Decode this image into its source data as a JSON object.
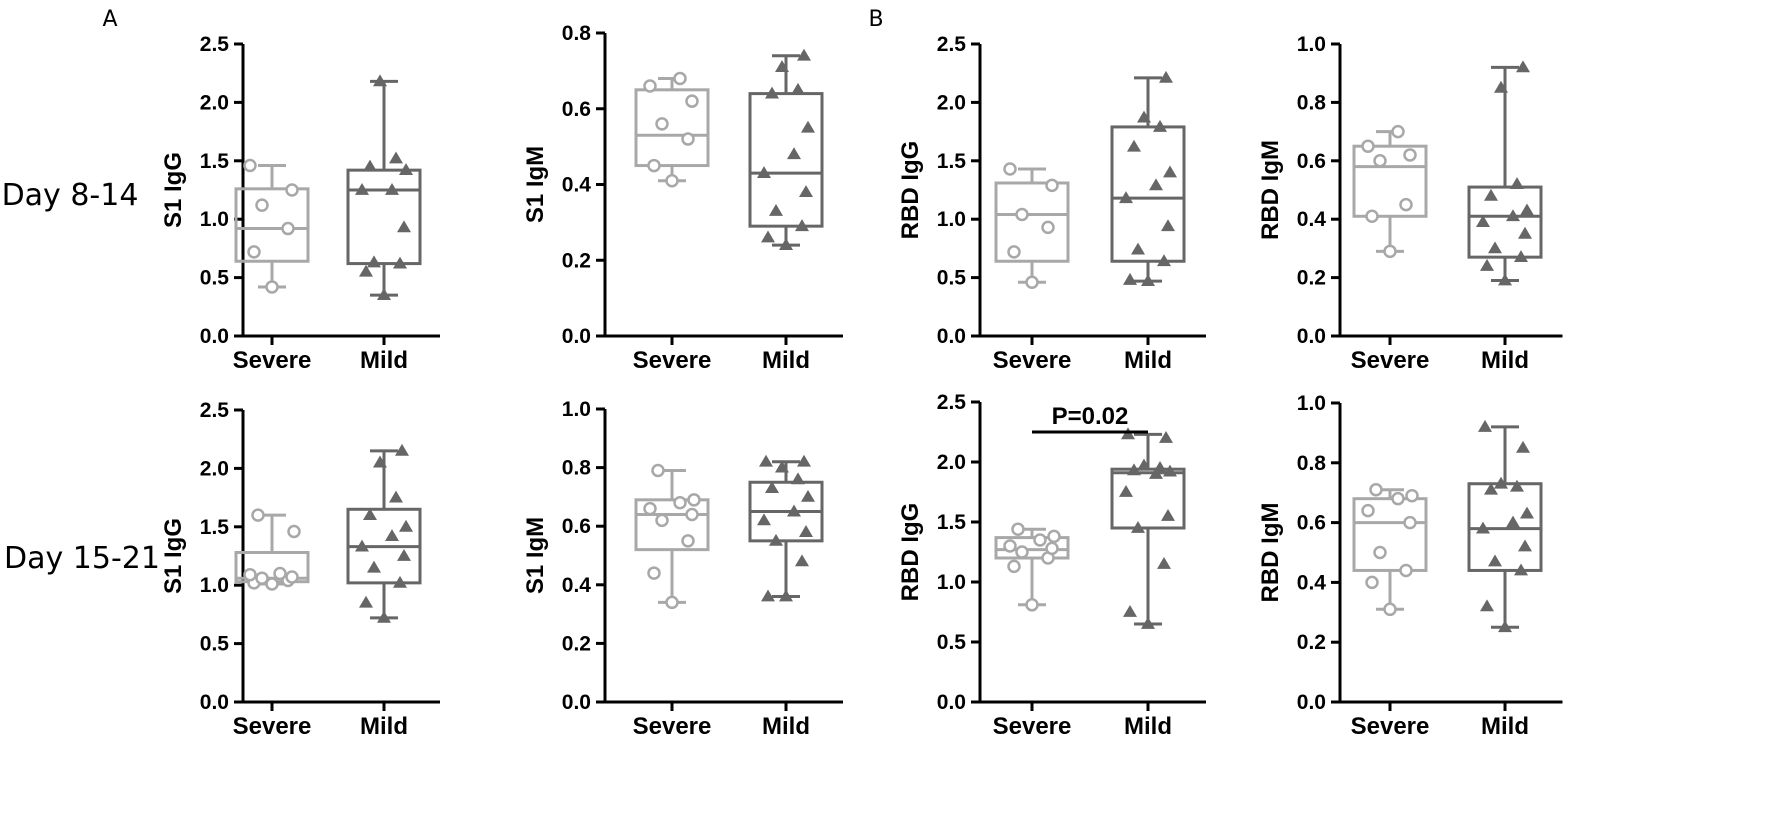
{
  "figure": {
    "panel_labels": [
      "A",
      "B"
    ],
    "row_labels": [
      "Day 8-14",
      "Day 15-21"
    ]
  },
  "colors": {
    "severe": "#a8a8a8",
    "mild": "#666666",
    "axis": "#000000"
  },
  "chart_data": [
    {
      "type": "box",
      "row": "Day 8-14",
      "ylabel": "S1 IgG",
      "ylim": [
        0,
        2.5
      ],
      "yticks": [
        "0.0",
        "0.5",
        "1.0",
        "1.5",
        "2.0",
        "2.5"
      ],
      "categories": [
        "Severe",
        "Mild"
      ],
      "series": [
        {
          "name": "Severe",
          "marker": "open-circle",
          "box": {
            "min": 0.42,
            "q1": 0.64,
            "median": 0.92,
            "q3": 1.26,
            "max": 1.46
          },
          "points": [
            0.42,
            0.72,
            0.92,
            1.12,
            1.25,
            1.46
          ]
        },
        {
          "name": "Mild",
          "marker": "filled-triangle",
          "box": {
            "min": 0.35,
            "q1": 0.62,
            "median": 1.25,
            "q3": 1.42,
            "max": 2.18
          },
          "points": [
            0.35,
            0.55,
            0.62,
            0.63,
            0.93,
            1.25,
            1.25,
            1.42,
            1.45,
            1.52,
            2.18
          ]
        }
      ]
    },
    {
      "type": "box",
      "row": "Day 8-14",
      "ylabel": "S1 IgM",
      "ylim": [
        0,
        0.8
      ],
      "yticks": [
        "0.0",
        "0.2",
        "0.4",
        "0.6",
        "0.8"
      ],
      "categories": [
        "Severe",
        "Mild"
      ],
      "series": [
        {
          "name": "Severe",
          "marker": "open-circle",
          "box": {
            "min": 0.41,
            "q1": 0.45,
            "median": 0.53,
            "q3": 0.65,
            "max": 0.68
          },
          "points": [
            0.41,
            0.45,
            0.52,
            0.56,
            0.62,
            0.66,
            0.68
          ]
        },
        {
          "name": "Mild",
          "marker": "filled-triangle",
          "box": {
            "min": 0.24,
            "q1": 0.29,
            "median": 0.43,
            "q3": 0.64,
            "max": 0.74
          },
          "points": [
            0.24,
            0.26,
            0.29,
            0.33,
            0.38,
            0.43,
            0.48,
            0.55,
            0.64,
            0.65,
            0.71,
            0.74
          ]
        }
      ]
    },
    {
      "type": "box",
      "row": "Day 8-14",
      "ylabel": "RBD IgG",
      "ylim": [
        0,
        2.5
      ],
      "yticks": [
        "0.0",
        "0.5",
        "1.0",
        "1.5",
        "2.0",
        "2.5"
      ],
      "categories": [
        "Severe",
        "Mild"
      ],
      "series": [
        {
          "name": "Severe",
          "marker": "open-circle",
          "box": {
            "min": 0.46,
            "q1": 0.64,
            "median": 1.04,
            "q3": 1.31,
            "max": 1.43
          },
          "points": [
            0.46,
            0.72,
            0.93,
            1.04,
            1.29,
            1.43
          ]
        },
        {
          "name": "Mild",
          "marker": "filled-triangle",
          "box": {
            "min": 0.47,
            "q1": 0.64,
            "median": 1.18,
            "q3": 1.79,
            "max": 2.21
          },
          "points": [
            0.47,
            0.48,
            0.64,
            0.74,
            0.94,
            1.18,
            1.29,
            1.4,
            1.62,
            1.79,
            1.87,
            2.21
          ]
        }
      ]
    },
    {
      "type": "box",
      "row": "Day 8-14",
      "ylabel": "RBD IgM",
      "ylim": [
        0,
        1.0
      ],
      "yticks": [
        "0.0",
        "0.2",
        "0.4",
        "0.6",
        "0.8",
        "1.0"
      ],
      "categories": [
        "Severe",
        "Mild"
      ],
      "series": [
        {
          "name": "Severe",
          "marker": "open-circle",
          "box": {
            "min": 0.29,
            "q1": 0.41,
            "median": 0.58,
            "q3": 0.65,
            "max": 0.7
          },
          "points": [
            0.29,
            0.41,
            0.45,
            0.6,
            0.62,
            0.65,
            0.7
          ]
        },
        {
          "name": "Mild",
          "marker": "filled-triangle",
          "box": {
            "min": 0.19,
            "q1": 0.27,
            "median": 0.41,
            "q3": 0.51,
            "max": 0.92
          },
          "points": [
            0.19,
            0.24,
            0.27,
            0.3,
            0.35,
            0.39,
            0.41,
            0.43,
            0.48,
            0.52,
            0.85,
            0.92
          ]
        }
      ]
    },
    {
      "type": "box",
      "row": "Day 15-21",
      "ylabel": "S1 IgG",
      "ylim": [
        0,
        2.5
      ],
      "yticks": [
        "0.0",
        "0.5",
        "1.0",
        "1.5",
        "2.0",
        "2.5"
      ],
      "categories": [
        "Severe",
        "Mild"
      ],
      "series": [
        {
          "name": "Severe",
          "marker": "open-circle",
          "box": {
            "min": 1.01,
            "q1": 1.03,
            "median": 1.06,
            "q3": 1.28,
            "max": 1.6
          },
          "points": [
            1.01,
            1.02,
            1.04,
            1.06,
            1.07,
            1.09,
            1.1,
            1.46,
            1.6
          ]
        },
        {
          "name": "Mild",
          "marker": "filled-triangle",
          "box": {
            "min": 0.72,
            "q1": 1.02,
            "median": 1.33,
            "q3": 1.65,
            "max": 2.15
          },
          "points": [
            0.72,
            0.85,
            1.02,
            1.15,
            1.25,
            1.33,
            1.42,
            1.5,
            1.6,
            1.75,
            2.05,
            2.15
          ]
        }
      ]
    },
    {
      "type": "box",
      "row": "Day 15-21",
      "ylabel": "S1 IgM",
      "ylim": [
        0,
        1.0
      ],
      "yticks": [
        "0.0",
        "0.2",
        "0.4",
        "0.6",
        "0.8",
        "1.0"
      ],
      "categories": [
        "Severe",
        "Mild"
      ],
      "series": [
        {
          "name": "Severe",
          "marker": "open-circle",
          "box": {
            "min": 0.34,
            "q1": 0.52,
            "median": 0.64,
            "q3": 0.69,
            "max": 0.79
          },
          "points": [
            0.34,
            0.44,
            0.55,
            0.62,
            0.64,
            0.66,
            0.68,
            0.69,
            0.79
          ]
        },
        {
          "name": "Mild",
          "marker": "filled-triangle",
          "box": {
            "min": 0.36,
            "q1": 0.55,
            "median": 0.65,
            "q3": 0.75,
            "max": 0.82
          },
          "points": [
            0.36,
            0.36,
            0.48,
            0.55,
            0.58,
            0.62,
            0.65,
            0.7,
            0.73,
            0.76,
            0.8,
            0.82,
            0.82
          ]
        }
      ]
    },
    {
      "type": "box",
      "row": "Day 15-21",
      "ylabel": "RBD IgG",
      "ylim": [
        0,
        2.5
      ],
      "yticks": [
        "0.0",
        "0.5",
        "1.0",
        "1.5",
        "2.0",
        "2.5"
      ],
      "categories": [
        "Severe",
        "Mild"
      ],
      "series": [
        {
          "name": "Severe",
          "marker": "open-circle",
          "box": {
            "min": 0.81,
            "q1": 1.2,
            "median": 1.27,
            "q3": 1.37,
            "max": 1.44
          },
          "points": [
            0.81,
            1.13,
            1.2,
            1.25,
            1.28,
            1.3,
            1.35,
            1.38,
            1.44
          ]
        },
        {
          "name": "Mild",
          "marker": "filled-triangle",
          "box": {
            "min": 0.65,
            "q1": 1.45,
            "median": 1.91,
            "q3": 1.94,
            "max": 2.23
          },
          "points": [
            0.65,
            0.75,
            1.15,
            1.45,
            1.55,
            1.75,
            1.9,
            1.92,
            1.93,
            1.95,
            1.97,
            2.2,
            2.23
          ]
        }
      ],
      "annotation": {
        "text": "P=0.02",
        "value": 2.35
      }
    },
    {
      "type": "box",
      "row": "Day 15-21",
      "ylabel": "RBD IgM",
      "ylim": [
        0,
        1.0
      ],
      "yticks": [
        "0.0",
        "0.2",
        "0.4",
        "0.6",
        "0.8",
        "1.0"
      ],
      "categories": [
        "Severe",
        "Mild"
      ],
      "series": [
        {
          "name": "Severe",
          "marker": "open-circle",
          "box": {
            "min": 0.31,
            "q1": 0.44,
            "median": 0.6,
            "q3": 0.68,
            "max": 0.71
          },
          "points": [
            0.31,
            0.4,
            0.44,
            0.5,
            0.6,
            0.64,
            0.68,
            0.69,
            0.71
          ]
        },
        {
          "name": "Mild",
          "marker": "filled-triangle",
          "box": {
            "min": 0.25,
            "q1": 0.44,
            "median": 0.58,
            "q3": 0.73,
            "max": 0.92
          },
          "points": [
            0.25,
            0.32,
            0.44,
            0.47,
            0.52,
            0.58,
            0.6,
            0.63,
            0.71,
            0.72,
            0.73,
            0.85,
            0.92
          ]
        }
      ]
    }
  ]
}
